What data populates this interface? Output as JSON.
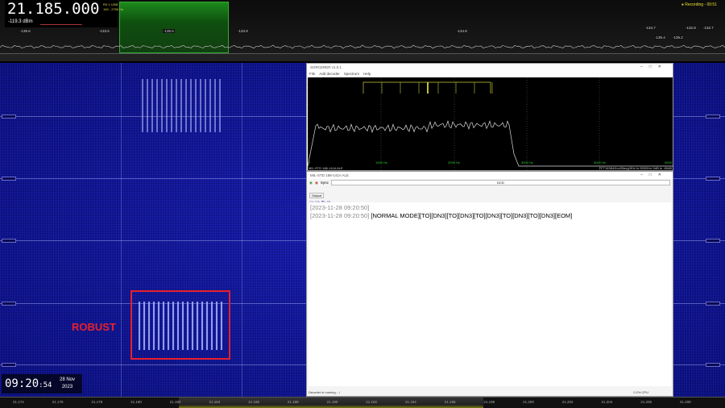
{
  "radio": {
    "frequency": "21.185.000",
    "mode": "RX 1  USB",
    "bandwidth": "100 - 2750 Hz",
    "level": "-119.3",
    "level_unit": "dBm",
    "recording": "Recording - 00:51"
  },
  "markers": [
    "-135.6",
    "-133.5",
    "-135.5",
    "-133.9",
    "-134.8",
    "-134.7",
    "-135.4",
    "-135.2",
    "-132.8",
    "-132.7"
  ],
  "annotation": {
    "label": "ROBUST",
    "color": "#e8202a"
  },
  "clock": {
    "time": "09:20",
    "seconds": ":54",
    "day": "28 Nov",
    "year": "2023"
  },
  "sorcerer": {
    "title": "SORCERER v1.0.1",
    "menu": [
      "File",
      "Add decoder",
      "Spectrum",
      "Help"
    ],
    "axis": [
      "0",
      "1000 Hz",
      "2000 Hz",
      "3000 Hz",
      "4000 Hz",
      "5000"
    ],
    "status_left": "MIL-STD 188-141A ALE",
    "status_right": "FFT16384/4ovf/5avg/0Hz to 5000Hz/-0dB to -80dB"
  },
  "decoder": {
    "title": "MIL-STD 188-141A ALE",
    "sync_label": "Sync",
    "sync_value": "DCD",
    "tab": "Output",
    "lines": [
      {
        "ts": "[2023-11-28 09:20:50]",
        "text": ""
      },
      {
        "ts": "[2023-11-28 09:20:50]",
        "text": "[NORMAL MODE][TO][DN3][TO][DN3][TO][DN3][TO][DN3][TO][DN3][EOM]"
      }
    ],
    "status": "Decoder is running... /",
    "cpu": "0.2% CPU"
  },
  "bottom_scale": [
    "21.174",
    "21.176",
    "21.178",
    "21.180",
    "21.182",
    "21.184",
    "21.186",
    "21.188",
    "21.190",
    "21.192",
    "21.194",
    "21.196",
    "21.198",
    "21.200",
    "21.202",
    "21.204",
    "21.206",
    "21.208"
  ]
}
